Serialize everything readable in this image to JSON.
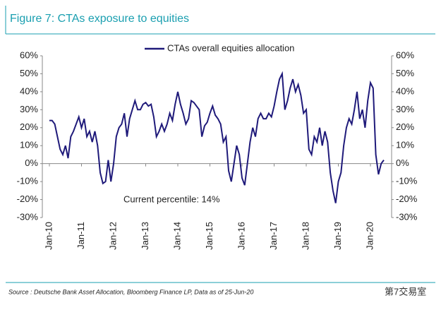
{
  "chart_data": {
    "type": "line",
    "title": "Figure 7: CTAs exposure to equities",
    "annotation": "Current percentile: 14%",
    "source": "Source : Deutsche Bank Asset Allocation, Bloomberg Finance LP, Data as of 25-Jun-20",
    "watermark": "第7交易室",
    "legend": "top",
    "x": [
      "2010-01",
      "2010-02",
      "2010-03",
      "2010-04",
      "2010-05",
      "2010-06",
      "2010-07",
      "2010-08",
      "2010-09",
      "2010-10",
      "2010-11",
      "2010-12",
      "2011-01",
      "2011-02",
      "2011-03",
      "2011-04",
      "2011-05",
      "2011-06",
      "2011-07",
      "2011-08",
      "2011-09",
      "2011-10",
      "2011-11",
      "2011-12",
      "2012-01",
      "2012-02",
      "2012-03",
      "2012-04",
      "2012-05",
      "2012-06",
      "2012-07",
      "2012-08",
      "2012-09",
      "2012-10",
      "2012-11",
      "2012-12",
      "2013-01",
      "2013-02",
      "2013-03",
      "2013-04",
      "2013-05",
      "2013-06",
      "2013-07",
      "2013-08",
      "2013-09",
      "2013-10",
      "2013-11",
      "2013-12",
      "2014-01",
      "2014-02",
      "2014-03",
      "2014-04",
      "2014-05",
      "2014-06",
      "2014-07",
      "2014-08",
      "2014-09",
      "2014-10",
      "2014-11",
      "2014-12",
      "2015-01",
      "2015-02",
      "2015-03",
      "2015-04",
      "2015-05",
      "2015-06",
      "2015-07",
      "2015-08",
      "2015-09",
      "2015-10",
      "2015-11",
      "2015-12",
      "2016-01",
      "2016-02",
      "2016-03",
      "2016-04",
      "2016-05",
      "2016-06",
      "2016-07",
      "2016-08",
      "2016-09",
      "2016-10",
      "2016-11",
      "2016-12",
      "2017-01",
      "2017-02",
      "2017-03",
      "2017-04",
      "2017-05",
      "2017-06",
      "2017-07",
      "2017-08",
      "2017-09",
      "2017-10",
      "2017-11",
      "2017-12",
      "2018-01",
      "2018-02",
      "2018-03",
      "2018-04",
      "2018-05",
      "2018-06",
      "2018-07",
      "2018-08",
      "2018-09",
      "2018-10",
      "2018-11",
      "2018-12",
      "2019-01",
      "2019-02",
      "2019-03",
      "2019-04",
      "2019-05",
      "2019-06",
      "2019-07",
      "2019-08",
      "2019-09",
      "2019-10",
      "2019-11",
      "2019-12",
      "2020-01",
      "2020-02",
      "2020-03",
      "2020-04",
      "2020-05",
      "2020-06"
    ],
    "series": [
      {
        "name": "CTAs overall equities allocation",
        "color": "#1f1a7a",
        "values": [
          24,
          24,
          22,
          15,
          8,
          5,
          10,
          3,
          15,
          18,
          22,
          26,
          20,
          25,
          15,
          18,
          12,
          18,
          10,
          -5,
          -11,
          -10,
          2,
          -10,
          0,
          15,
          20,
          22,
          28,
          15,
          25,
          30,
          35,
          30,
          30,
          33,
          34,
          32,
          33,
          26,
          15,
          18,
          22,
          18,
          22,
          28,
          24,
          33,
          40,
          33,
          28,
          22,
          25,
          35,
          34,
          32,
          30,
          15,
          21,
          23,
          28,
          32,
          27,
          25,
          22,
          12,
          15,
          -4,
          -10,
          0,
          10,
          5,
          -8,
          -12,
          0,
          12,
          20,
          15,
          25,
          28,
          25,
          25,
          28,
          26,
          32,
          40,
          47,
          50,
          30,
          35,
          42,
          47,
          40,
          44,
          38,
          28,
          30,
          8,
          5,
          15,
          12,
          20,
          10,
          18,
          12,
          -5,
          -15,
          -22,
          -10,
          -5,
          10,
          20,
          25,
          22,
          30,
          40,
          25,
          30,
          20,
          35,
          45,
          42,
          5,
          -6,
          0,
          2
        ]
      }
    ],
    "xticks": [
      {
        "value": "2010-01",
        "label": "Jan-10"
      },
      {
        "value": "2011-01",
        "label": "Jan-11"
      },
      {
        "value": "2012-01",
        "label": "Jan-12"
      },
      {
        "value": "2013-01",
        "label": "Jan-13"
      },
      {
        "value": "2014-01",
        "label": "Jan-14"
      },
      {
        "value": "2015-01",
        "label": "Jan-15"
      },
      {
        "value": "2016-01",
        "label": "Jan-16"
      },
      {
        "value": "2017-01",
        "label": "Jan-17"
      },
      {
        "value": "2018-01",
        "label": "Jan-18"
      },
      {
        "value": "2019-01",
        "label": "Jan-19"
      },
      {
        "value": "2020-01",
        "label": "Jan-20"
      }
    ],
    "ylim": [
      -30,
      60
    ],
    "yticks": [
      {
        "value": -30,
        "label": "-30%"
      },
      {
        "value": -20,
        "label": "-20%"
      },
      {
        "value": -10,
        "label": "-10%"
      },
      {
        "value": 0,
        "label": "0%"
      },
      {
        "value": 10,
        "label": "10%"
      },
      {
        "value": 20,
        "label": "20%"
      },
      {
        "value": 30,
        "label": "30%"
      },
      {
        "value": 40,
        "label": "40%"
      },
      {
        "value": 50,
        "label": "50%"
      },
      {
        "value": 60,
        "label": "60%"
      }
    ],
    "y2lim": [
      -30,
      60
    ],
    "y2ticks": [
      {
        "value": -30,
        "label": "-30%"
      },
      {
        "value": -20,
        "label": "-20%"
      },
      {
        "value": -10,
        "label": "-10%"
      },
      {
        "value": 0,
        "label": "0%"
      },
      {
        "value": 10,
        "label": "10%"
      },
      {
        "value": 20,
        "label": "20%"
      },
      {
        "value": 30,
        "label": "30%"
      },
      {
        "value": 40,
        "label": "40%"
      },
      {
        "value": 50,
        "label": "50%"
      },
      {
        "value": 60,
        "label": "60%"
      }
    ]
  }
}
